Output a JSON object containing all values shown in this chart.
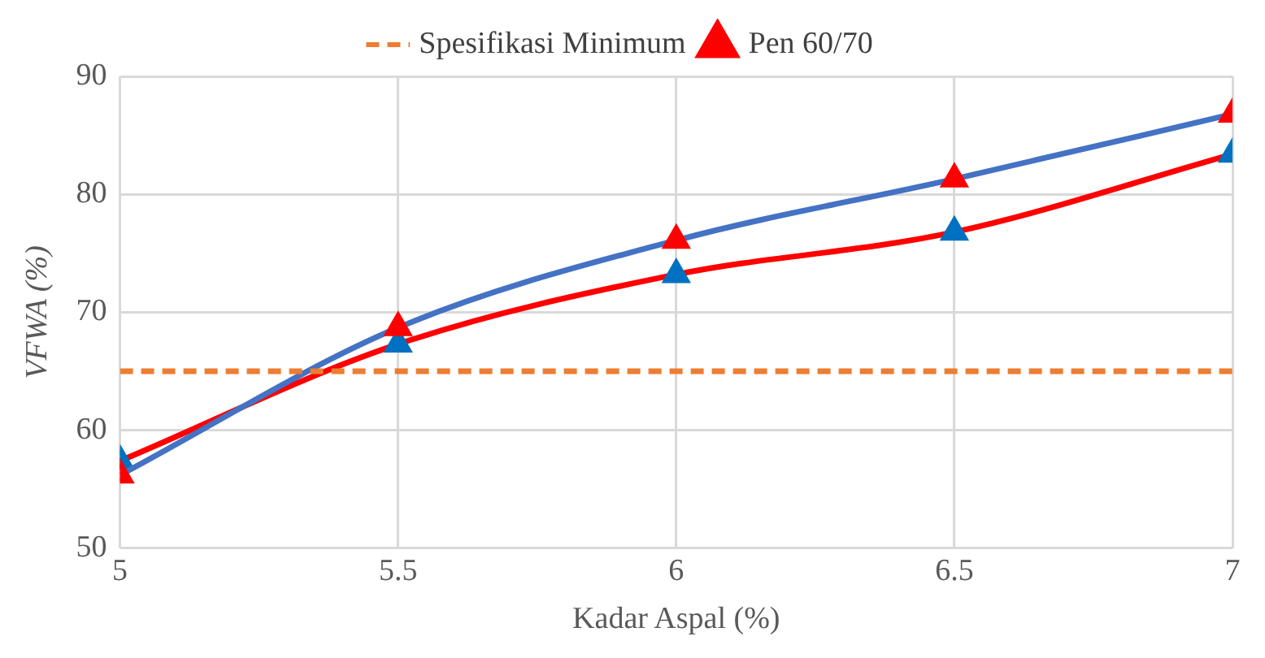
{
  "chart_data": {
    "type": "line",
    "xlabel": "Kadar Aspal (%)",
    "ylabel": "VFWA (%)",
    "x": [
      5,
      5.5,
      6,
      6.5,
      7
    ],
    "xlim": [
      5,
      7
    ],
    "xticks": [
      5,
      5.5,
      6,
      6.5,
      7
    ],
    "ylim": [
      50,
      90
    ],
    "yticks": [
      50,
      60,
      70,
      80,
      90
    ],
    "grid": true,
    "legend": "top",
    "series": [
      {
        "name": "Spesifikasi Minimum",
        "color": "#ed7d31",
        "line_style": "dashed",
        "marker": "none",
        "values": [
          65,
          65,
          65,
          65,
          65
        ]
      },
      {
        "name": "Pen 60/70",
        "color": "#4472c4",
        "colors": [
          "#ff0000",
          "#ff0000",
          "#ff0000",
          "#ff0000",
          "#ff0000"
        ],
        "marker": "triangle",
        "line_style": "solid",
        "values": [
          56.2,
          68.7,
          76.1,
          81.3,
          86.8
        ]
      },
      {
        "color": "#ff0000",
        "colors": [
          "#0070c0",
          "#0070c0",
          "#0070c0",
          "#0070c0",
          "#0070c0"
        ],
        "marker": "triangle",
        "line_style": "solid",
        "values": [
          57.4,
          67.3,
          73.2,
          76.8,
          83.4
        ]
      }
    ]
  }
}
